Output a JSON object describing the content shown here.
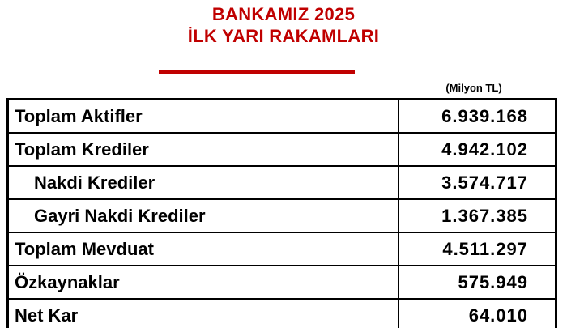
{
  "header": {
    "title_line1": "BANKAMIZ 2025",
    "title_line2": "İLK YARI RAKAMLARI",
    "accent_color": "#C00000"
  },
  "unit_label": "(Milyon TL)",
  "table": {
    "rows": [
      {
        "label": "Toplam Aktifler",
        "value": "6.939.168",
        "indent": false
      },
      {
        "label": "Toplam Krediler",
        "value": "4.942.102",
        "indent": false
      },
      {
        "label": "Nakdi Krediler",
        "value": "3.574.717",
        "indent": true
      },
      {
        "label": "Gayri Nakdi Krediler",
        "value": "1.367.385",
        "indent": true
      },
      {
        "label": "Toplam Mevduat",
        "value": "4.511.297",
        "indent": false
      },
      {
        "label": "Özkaynaklar",
        "value": "575.949",
        "indent": false
      },
      {
        "label": "Net Kar",
        "value": "64.010",
        "indent": false
      }
    ]
  }
}
